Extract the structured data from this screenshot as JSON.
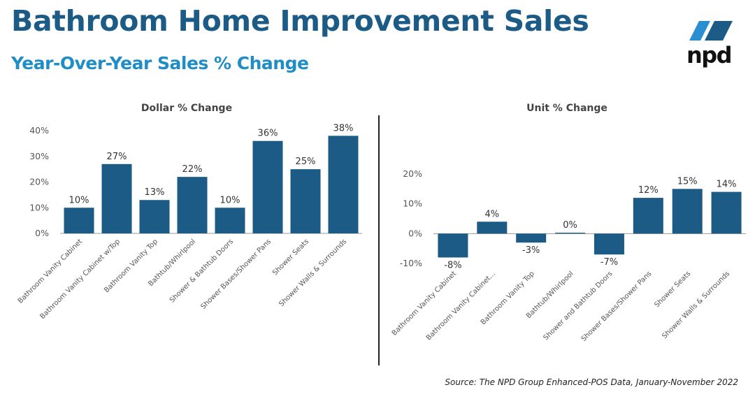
{
  "header": {
    "title": "Bathroom Home Improvement Sales",
    "subtitle": "Year-Over-Year Sales % Change"
  },
  "logo": {
    "text": "npd",
    "colors": {
      "dark": "#1b5b86",
      "light": "#2a8fd0"
    }
  },
  "source": "Source: The NPD Group Enhanced-POS Data, January-November 2022",
  "colors": {
    "bar": "#1b5b86",
    "title": "#1b5b86",
    "subtitle": "#1f8ec6"
  },
  "chart_data": [
    {
      "type": "bar",
      "title": "Dollar % Change",
      "categories": [
        "Bathroom Vanity Cabinet",
        "Bathroom Vanity Cabinet w/Top",
        "Bathroom Vanity Top",
        "Bathtub/Whirlpool",
        "Shower & Bathtub Doors",
        "Shower Bases/Shower Pans",
        "Shower Seats",
        "Shower Walls & Surrounds"
      ],
      "values": [
        10,
        27,
        13,
        22,
        10,
        36,
        25,
        38
      ],
      "data_labels": [
        "10%",
        "27%",
        "13%",
        "22%",
        "10%",
        "36%",
        "25%",
        "38%"
      ],
      "yticks": [
        "0%",
        "10%",
        "20%",
        "30%",
        "40%"
      ],
      "ylim": [
        0,
        40
      ],
      "grid": false
    },
    {
      "type": "bar",
      "title": "Unit % Change",
      "categories": [
        "Bathroom Vanity Cabinet",
        "Bathroom Vanity Cabinet...",
        "Bathroom Vanity Top",
        "Bathtub/Whirlpool",
        "Shower and Bathtub Doors",
        "Shower Bases/Shower Pans",
        "Shower Seats",
        "Shower Walls & Surrounds"
      ],
      "values": [
        -8,
        4,
        -3,
        0.3,
        -7,
        12,
        15,
        14
      ],
      "data_labels": [
        "-8%",
        "4%",
        "-3%",
        "0%",
        "-7%",
        "12%",
        "15%",
        "14%"
      ],
      "yticks": [
        "-10%",
        "0%",
        "10%",
        "20%"
      ],
      "ylim": [
        -10,
        20
      ],
      "grid": false
    }
  ]
}
